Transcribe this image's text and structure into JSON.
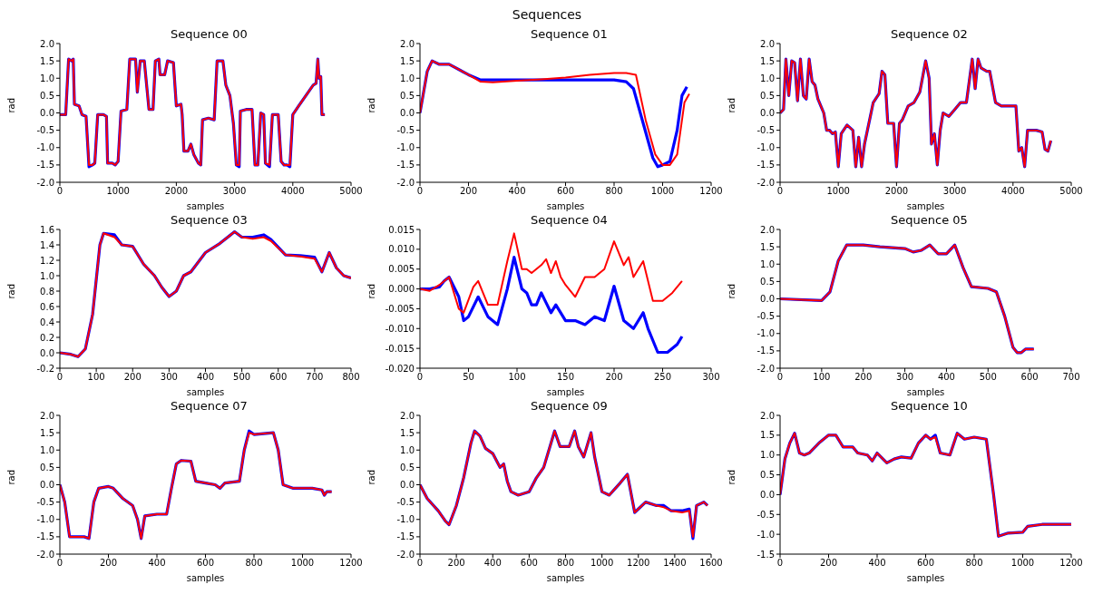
{
  "chart_data": [
    {
      "type": "line",
      "annotations": [
        "Sequences"
      ],
      "title": "Sequence 00",
      "xlabel": "samples",
      "ylabel": "rad",
      "xlim": [
        0,
        5000
      ],
      "xticks": [
        0,
        1000,
        2000,
        3000,
        4000,
        5000
      ],
      "ylim": [
        -2,
        2
      ],
      "yticks": [
        {
          "value": -2,
          "label": "-2.0"
        },
        -1.5,
        {
          "value": -1,
          "label": "-1.0"
        },
        -0.5,
        {
          "value": 0,
          "label": "0.0"
        },
        0.5,
        {
          "value": 1,
          "label": "1.0"
        },
        1.5,
        {
          "value": 2,
          "label": "2.0"
        }
      ],
      "grid": false,
      "marker": "none",
      "line_style": "solid",
      "x": [
        0,
        100,
        150,
        200,
        230,
        250,
        330,
        380,
        450,
        500,
        560,
        600,
        650,
        750,
        800,
        820,
        900,
        950,
        1000,
        1050,
        1150,
        1200,
        1300,
        1330,
        1380,
        1450,
        1530,
        1600,
        1640,
        1700,
        1720,
        1800,
        1850,
        1950,
        2000,
        2080,
        2100,
        2130,
        2200,
        2250,
        2300,
        2380,
        2420,
        2450,
        2550,
        2650,
        2700,
        2800,
        2850,
        2920,
        2980,
        3030,
        3080,
        3100,
        3200,
        3300,
        3350,
        3400,
        3450,
        3500,
        3530,
        3600,
        3650,
        3750,
        3800,
        3850,
        3900,
        3950,
        4000,
        4100,
        4350,
        4400,
        4430,
        4450,
        4480,
        4500,
        4550
      ],
      "series": [
        {
          "color": "#0000ff",
          "values": [
            -0.05,
            -0.05,
            1.55,
            1.5,
            1.55,
            0.25,
            0.2,
            -0.05,
            -0.1,
            -1.55,
            -1.5,
            -1.45,
            -0.05,
            -0.05,
            -0.1,
            -1.45,
            -1.45,
            -1.5,
            -1.4,
            0.05,
            0.1,
            1.55,
            1.55,
            0.6,
            1.5,
            1.5,
            0.1,
            0.1,
            1.5,
            1.55,
            1.1,
            1.1,
            1.5,
            1.45,
            0.2,
            0.25,
            -0.05,
            -1.1,
            -1.1,
            -0.9,
            -1.2,
            -1.45,
            -1.5,
            -0.2,
            -0.15,
            -0.2,
            1.5,
            1.5,
            0.8,
            0.5,
            -0.3,
            -1.5,
            -1.55,
            0.05,
            0.1,
            0.1,
            -1.5,
            -1.5,
            0,
            -0.05,
            -1.45,
            -1.55,
            -0.05,
            -0.05,
            -1.4,
            -1.5,
            -1.5,
            -1.55,
            -0.05,
            0.2,
            0.8,
            0.85,
            1.55,
            1.0,
            1.05,
            -0.05,
            -0.05
          ]
        },
        {
          "color": "#ff0000",
          "values": [
            -0.05,
            -0.05,
            1.55,
            1.5,
            1.55,
            0.25,
            0.2,
            -0.05,
            -0.1,
            -1.5,
            -1.5,
            -1.45,
            -0.05,
            -0.05,
            -0.1,
            -1.45,
            -1.45,
            -1.5,
            -1.4,
            0.05,
            0.1,
            1.55,
            1.55,
            0.6,
            1.5,
            1.5,
            0.1,
            0.1,
            1.5,
            1.55,
            1.1,
            1.1,
            1.5,
            1.45,
            0.2,
            0.25,
            -0.05,
            -1.1,
            -1.1,
            -0.9,
            -1.2,
            -1.45,
            -1.5,
            -0.2,
            -0.15,
            -0.2,
            1.5,
            1.5,
            0.8,
            0.5,
            -0.3,
            -1.5,
            -1.5,
            0.05,
            0.1,
            0.1,
            -1.5,
            -1.5,
            0,
            -0.05,
            -1.45,
            -1.5,
            -0.05,
            -0.05,
            -1.4,
            -1.5,
            -1.5,
            -1.5,
            -0.05,
            0.2,
            0.8,
            0.85,
            1.55,
            1.0,
            1.05,
            -0.05,
            -0.05
          ]
        }
      ]
    },
    {
      "type": "line",
      "title": "Sequence 01",
      "xlabel": "samples",
      "ylabel": "rad",
      "xlim": [
        0,
        1200
      ],
      "xticks": [
        0,
        200,
        400,
        600,
        800,
        1000,
        1200
      ],
      "ylim": [
        -2,
        2
      ],
      "yticks": [
        {
          "value": -2,
          "label": "-2.0"
        },
        -1.5,
        {
          "value": -1,
          "label": "-1.0"
        },
        -0.5,
        {
          "value": 0,
          "label": "0.0"
        },
        0.5,
        {
          "value": 1,
          "label": "1.0"
        },
        1.5,
        {
          "value": 2,
          "label": "2.0"
        }
      ],
      "grid": false,
      "marker": "none",
      "line_style": "solid",
      "series": [
        {
          "color": "#0000ff",
          "x": [
            0,
            30,
            50,
            80,
            120,
            200,
            250,
            300,
            400,
            500,
            600,
            700,
            800,
            850,
            880,
            920,
            960,
            980,
            1000,
            1030,
            1060,
            1080,
            1100
          ],
          "values": [
            0,
            1.2,
            1.5,
            1.4,
            1.4,
            1.1,
            0.95,
            0.95,
            0.95,
            0.95,
            0.95,
            0.95,
            0.95,
            0.9,
            0.7,
            -0.3,
            -1.3,
            -1.55,
            -1.5,
            -1.4,
            -0.5,
            0.5,
            0.75
          ]
        },
        {
          "color": "#ff0000",
          "x": [
            0,
            30,
            50,
            80,
            120,
            200,
            250,
            300,
            400,
            500,
            600,
            700,
            800,
            850,
            890,
            930,
            970,
            1000,
            1030,
            1060,
            1090,
            1110
          ],
          "values": [
            0,
            1.2,
            1.5,
            1.4,
            1.4,
            1.1,
            0.9,
            0.88,
            0.93,
            0.97,
            1.02,
            1.1,
            1.15,
            1.15,
            1.1,
            -0.2,
            -1.2,
            -1.5,
            -1.5,
            -1.2,
            0.3,
            0.55
          ]
        }
      ]
    },
    {
      "type": "line",
      "title": "Sequence 02",
      "xlabel": "samples",
      "ylabel": "rad",
      "xlim": [
        0,
        5000
      ],
      "xticks": [
        0,
        1000,
        2000,
        3000,
        4000,
        5000
      ],
      "ylim": [
        -2,
        2
      ],
      "yticks": [
        {
          "value": -2,
          "label": "-2.0"
        },
        -1.5,
        {
          "value": -1,
          "label": "-1.0"
        },
        -0.5,
        {
          "value": 0,
          "label": "0.0"
        },
        0.5,
        {
          "value": 1,
          "label": "1.0"
        },
        1.5,
        {
          "value": 2,
          "label": "2.0"
        }
      ],
      "grid": false,
      "marker": "none",
      "line_style": "solid",
      "x": [
        0,
        60,
        100,
        150,
        200,
        250,
        300,
        350,
        400,
        450,
        500,
        550,
        600,
        650,
        700,
        750,
        800,
        850,
        900,
        950,
        1000,
        1050,
        1150,
        1250,
        1300,
        1350,
        1400,
        1450,
        1500,
        1550,
        1600,
        1700,
        1750,
        1800,
        1850,
        1950,
        2000,
        2050,
        2100,
        2200,
        2300,
        2400,
        2500,
        2560,
        2600,
        2650,
        2700,
        2750,
        2800,
        2900,
        3000,
        3100,
        3200,
        3300,
        3350,
        3400,
        3450,
        3550,
        3600,
        3700,
        3800,
        3900,
        4000,
        4050,
        4100,
        4150,
        4200,
        4250,
        4400,
        4500,
        4550,
        4600,
        4650
      ],
      "series": [
        {
          "color": "#0000ff",
          "values": [
            0,
            0.1,
            1.55,
            0.5,
            1.5,
            1.45,
            0.35,
            1.55,
            0.5,
            0.4,
            1.55,
            0.9,
            0.8,
            0.4,
            0.2,
            0,
            -0.5,
            -0.5,
            -0.6,
            -0.55,
            -1.55,
            -0.6,
            -0.35,
            -0.5,
            -1.55,
            -0.7,
            -1.55,
            -0.9,
            -0.5,
            -0.1,
            0.3,
            0.55,
            1.2,
            1.1,
            -0.3,
            -0.3,
            -1.55,
            -0.3,
            -0.2,
            0.2,
            0.3,
            0.6,
            1.5,
            1.0,
            -0.9,
            -0.6,
            -1.5,
            -0.5,
            0,
            -0.1,
            0.1,
            0.3,
            0.3,
            1.55,
            0.7,
            1.55,
            1.3,
            1.2,
            1.2,
            0.3,
            0.2,
            0.2,
            0.2,
            0.2,
            -1.1,
            -1.0,
            -1.55,
            -0.5,
            -0.5,
            -0.55,
            -1.05,
            -1.1,
            -0.8
          ]
        },
        {
          "color": "#ff0000",
          "values": [
            0,
            0.1,
            1.55,
            0.5,
            1.5,
            1.45,
            0.35,
            1.55,
            0.5,
            0.4,
            1.55,
            0.9,
            0.8,
            0.4,
            0.2,
            0,
            -0.5,
            -0.5,
            -0.6,
            -0.55,
            -1.55,
            -0.6,
            -0.35,
            -0.5,
            -1.55,
            -0.7,
            -1.55,
            -0.9,
            -0.5,
            -0.1,
            0.3,
            0.55,
            1.2,
            1.1,
            -0.3,
            -0.3,
            -1.55,
            -0.3,
            -0.2,
            0.2,
            0.3,
            0.6,
            1.5,
            1.0,
            -0.9,
            -0.6,
            -1.5,
            -0.5,
            0,
            -0.1,
            0.1,
            0.3,
            0.3,
            1.55,
            0.7,
            1.55,
            1.3,
            1.2,
            1.2,
            0.3,
            0.2,
            0.2,
            0.2,
            0.2,
            -1.1,
            -1.0,
            -1.55,
            -0.5,
            -0.5,
            -0.55,
            -1.05,
            -1.1,
            -0.8
          ]
        }
      ]
    },
    {
      "type": "line",
      "title": "Sequence 03",
      "xlabel": "samples",
      "ylabel": "rad",
      "xlim": [
        0,
        800
      ],
      "xticks": [
        0,
        100,
        200,
        300,
        400,
        500,
        600,
        700,
        800
      ],
      "ylim": [
        -0.2,
        1.6
      ],
      "yticks": [
        -0.2,
        {
          "value": 0,
          "label": "0.0"
        },
        0.2,
        0.4,
        0.6,
        0.8,
        {
          "value": 1,
          "label": "1.0"
        },
        1.2,
        1.4,
        1.6
      ],
      "grid": false,
      "marker": "none",
      "line_style": "solid",
      "x": [
        0,
        30,
        50,
        70,
        90,
        110,
        120,
        150,
        170,
        200,
        230,
        260,
        280,
        300,
        320,
        340,
        360,
        400,
        440,
        480,
        500,
        530,
        560,
        580,
        620,
        660,
        700,
        720,
        740,
        760,
        780,
        800
      ],
      "series": [
        {
          "color": "#0000ff",
          "values": [
            0,
            -0.02,
            -0.05,
            0.05,
            0.5,
            1.4,
            1.55,
            1.53,
            1.4,
            1.38,
            1.15,
            1.0,
            0.85,
            0.73,
            0.8,
            1.0,
            1.05,
            1.3,
            1.42,
            1.57,
            1.5,
            1.5,
            1.53,
            1.47,
            1.27,
            1.26,
            1.24,
            1.05,
            1.3,
            1.1,
            1.0,
            0.97
          ]
        },
        {
          "color": "#ff0000",
          "values": [
            0,
            -0.02,
            -0.05,
            0.05,
            0.5,
            1.4,
            1.55,
            1.5,
            1.4,
            1.38,
            1.15,
            1.0,
            0.85,
            0.73,
            0.8,
            1.0,
            1.05,
            1.3,
            1.42,
            1.57,
            1.5,
            1.48,
            1.5,
            1.45,
            1.27,
            1.25,
            1.22,
            1.05,
            1.3,
            1.1,
            1.0,
            0.97
          ]
        }
      ]
    },
    {
      "type": "line",
      "title": "Sequence 04",
      "xlabel": "samples",
      "ylabel": "rad",
      "xlim": [
        0,
        300
      ],
      "xticks": [
        0,
        50,
        100,
        150,
        200,
        250,
        300
      ],
      "ylim": [
        -0.02,
        0.015
      ],
      "yticks": [
        {
          "value": -0.02,
          "label": "-0.020"
        },
        -0.015,
        {
          "value": -0.01,
          "label": "-0.010"
        },
        -0.005,
        {
          "value": 0,
          "label": "0.000"
        },
        0.005,
        {
          "value": 0.01,
          "label": "0.010"
        },
        0.015
      ],
      "grid": false,
      "marker": "none",
      "line_style": "solid",
      "series": [
        {
          "color": "#0000ff",
          "x": [
            0,
            10,
            20,
            25,
            30,
            40,
            45,
            50,
            60,
            70,
            80,
            90,
            97,
            105,
            110,
            115,
            120,
            125,
            130,
            135,
            140,
            150,
            160,
            170,
            180,
            190,
            200,
            210,
            220,
            230,
            235,
            245,
            255,
            265,
            270
          ],
          "values": [
            0,
            0,
            0.0005,
            0.002,
            0.003,
            -0.002,
            -0.008,
            -0.007,
            -0.002,
            -0.007,
            -0.009,
            0,
            0.008,
            0,
            -0.001,
            -0.004,
            -0.004,
            -0.001,
            -0.0035,
            -0.006,
            -0.004,
            -0.008,
            -0.008,
            -0.009,
            -0.007,
            -0.008,
            0.0007,
            -0.008,
            -0.01,
            -0.006,
            -0.01,
            -0.016,
            -0.016,
            -0.014,
            -0.012
          ]
        },
        {
          "color": "#ff0000",
          "x": [
            0,
            10,
            20,
            30,
            40,
            45,
            55,
            60,
            70,
            80,
            90,
            97,
            105,
            110,
            115,
            125,
            130,
            135,
            140,
            145,
            150,
            160,
            170,
            180,
            190,
            200,
            210,
            215,
            220,
            230,
            240,
            250,
            260,
            270
          ],
          "values": [
            0,
            -0.0005,
            0.001,
            0.003,
            -0.005,
            -0.006,
            0.0005,
            0.002,
            -0.004,
            -0.004,
            0.007,
            0.014,
            0.005,
            0.005,
            0.004,
            0.006,
            0.0075,
            0.004,
            0.007,
            0.003,
            0.001,
            -0.002,
            0.003,
            0.003,
            0.005,
            0.012,
            0.006,
            0.008,
            0.003,
            0.007,
            -0.003,
            -0.003,
            -0.001,
            0.002
          ]
        }
      ]
    },
    {
      "type": "line",
      "title": "Sequence 05",
      "xlabel": "samples",
      "ylabel": "rad",
      "xlim": [
        0,
        700
      ],
      "xticks": [
        0,
        100,
        200,
        300,
        400,
        500,
        600,
        700
      ],
      "ylim": [
        -2,
        2
      ],
      "yticks": [
        {
          "value": -2,
          "label": "-2.0"
        },
        -1.5,
        {
          "value": -1,
          "label": "-1.0"
        },
        -0.5,
        {
          "value": 0,
          "label": "0.0"
        },
        0.5,
        {
          "value": 1,
          "label": "1.0"
        },
        1.5,
        {
          "value": 2,
          "label": "2.0"
        }
      ],
      "grid": false,
      "marker": "none",
      "line_style": "solid",
      "x": [
        0,
        100,
        120,
        140,
        160,
        200,
        240,
        300,
        320,
        340,
        360,
        380,
        400,
        420,
        440,
        460,
        500,
        520,
        540,
        560,
        570,
        580,
        590,
        610
      ],
      "series": [
        {
          "color": "#0000ff",
          "values": [
            0,
            -0.05,
            0.2,
            1.1,
            1.55,
            1.55,
            1.5,
            1.45,
            1.35,
            1.4,
            1.55,
            1.3,
            1.3,
            1.55,
            0.9,
            0.35,
            0.3,
            0.2,
            -0.5,
            -1.4,
            -1.55,
            -1.55,
            -1.45,
            -1.45
          ]
        },
        {
          "color": "#ff0000",
          "values": [
            0,
            -0.05,
            0.2,
            1.1,
            1.55,
            1.55,
            1.5,
            1.45,
            1.35,
            1.4,
            1.55,
            1.3,
            1.3,
            1.55,
            0.9,
            0.35,
            0.3,
            0.2,
            -0.5,
            -1.4,
            -1.55,
            -1.55,
            -1.45,
            -1.45
          ]
        }
      ]
    },
    {
      "type": "line",
      "title": "Sequence 07",
      "xlabel": "samples",
      "ylabel": "rad",
      "xlim": [
        0,
        1200
      ],
      "xticks": [
        0,
        200,
        400,
        600,
        800,
        1000,
        1200
      ],
      "ylim": [
        -2,
        2
      ],
      "yticks": [
        {
          "value": -2,
          "label": "-2.0"
        },
        -1.5,
        {
          "value": -1,
          "label": "-1.0"
        },
        -0.5,
        {
          "value": 0,
          "label": "0.0"
        },
        0.5,
        {
          "value": 1,
          "label": "1.0"
        },
        1.5,
        {
          "value": 2,
          "label": "2.0"
        }
      ],
      "grid": false,
      "marker": "none",
      "line_style": "solid",
      "x": [
        0,
        20,
        40,
        60,
        100,
        120,
        140,
        160,
        200,
        220,
        260,
        300,
        320,
        335,
        350,
        400,
        440,
        460,
        480,
        500,
        540,
        560,
        600,
        640,
        660,
        680,
        740,
        760,
        780,
        800,
        880,
        900,
        920,
        960,
        1000,
        1040,
        1080,
        1090,
        1100,
        1120
      ],
      "series": [
        {
          "color": "#0000ff",
          "values": [
            0,
            -0.5,
            -1.5,
            -1.5,
            -1.5,
            -1.55,
            -0.5,
            -0.1,
            -0.05,
            -0.1,
            -0.4,
            -0.6,
            -1.0,
            -1.55,
            -0.9,
            -0.85,
            -0.85,
            -0.1,
            0.6,
            0.7,
            0.68,
            0.1,
            0.05,
            0,
            -0.1,
            0.05,
            0.1,
            1.0,
            1.55,
            1.45,
            1.5,
            1.0,
            0,
            -0.1,
            -0.1,
            -0.1,
            -0.15,
            -0.3,
            -0.2,
            -0.2
          ]
        },
        {
          "color": "#ff0000",
          "values": [
            0,
            -0.5,
            -1.5,
            -1.5,
            -1.5,
            -1.55,
            -0.5,
            -0.1,
            -0.05,
            -0.1,
            -0.4,
            -0.6,
            -1.0,
            -1.55,
            -0.9,
            -0.85,
            -0.85,
            -0.1,
            0.6,
            0.7,
            0.68,
            0.1,
            0.05,
            0,
            -0.1,
            0.05,
            0.1,
            1.0,
            1.5,
            1.45,
            1.5,
            1.0,
            0,
            -0.1,
            -0.1,
            -0.1,
            -0.15,
            -0.3,
            -0.2,
            -0.2
          ]
        }
      ]
    },
    {
      "type": "line",
      "title": "Sequence 09",
      "xlabel": "samples",
      "ylabel": "rad",
      "xlim": [
        0,
        1600
      ],
      "xticks": [
        0,
        200,
        400,
        600,
        800,
        1000,
        1200,
        1400,
        1600
      ],
      "ylim": [
        -2,
        2
      ],
      "yticks": [
        {
          "value": -2,
          "label": "-2.0"
        },
        -1.5,
        {
          "value": -1,
          "label": "-1.0"
        },
        -0.5,
        {
          "value": 0,
          "label": "0.0"
        },
        0.5,
        {
          "value": 1,
          "label": "1.0"
        },
        1.5,
        {
          "value": 2,
          "label": "2.0"
        }
      ],
      "grid": false,
      "marker": "none",
      "line_style": "solid",
      "x": [
        0,
        40,
        100,
        140,
        160,
        200,
        240,
        280,
        300,
        330,
        360,
        400,
        440,
        460,
        480,
        500,
        540,
        600,
        640,
        680,
        740,
        770,
        820,
        850,
        870,
        900,
        940,
        960,
        1000,
        1040,
        1100,
        1140,
        1180,
        1200,
        1240,
        1300,
        1340,
        1380,
        1440,
        1480,
        1500,
        1520,
        1560,
        1580
      ],
      "series": [
        {
          "color": "#0000ff",
          "values": [
            0,
            -0.4,
            -0.75,
            -1.05,
            -1.15,
            -0.6,
            0.2,
            1.2,
            1.55,
            1.4,
            1.05,
            0.9,
            0.5,
            0.6,
            0.1,
            -0.2,
            -0.3,
            -0.2,
            0.2,
            0.5,
            1.55,
            1.1,
            1.1,
            1.55,
            1.1,
            0.8,
            1.5,
            0.8,
            -0.2,
            -0.3,
            0.05,
            0.3,
            -0.8,
            -0.7,
            -0.5,
            -0.6,
            -0.6,
            -0.75,
            -0.75,
            -0.7,
            -1.55,
            -0.6,
            -0.5,
            -0.6
          ]
        },
        {
          "color": "#ff0000",
          "values": [
            0,
            -0.4,
            -0.75,
            -1.05,
            -1.15,
            -0.6,
            0.2,
            1.2,
            1.55,
            1.4,
            1.05,
            0.9,
            0.5,
            0.6,
            0.1,
            -0.2,
            -0.3,
            -0.2,
            0.2,
            0.5,
            1.55,
            1.1,
            1.1,
            1.55,
            1.1,
            0.8,
            1.5,
            0.8,
            -0.2,
            -0.3,
            0.05,
            0.3,
            -0.8,
            -0.7,
            -0.5,
            -0.6,
            -0.65,
            -0.75,
            -0.8,
            -0.75,
            -1.5,
            -0.6,
            -0.5,
            -0.6
          ]
        }
      ]
    },
    {
      "type": "line",
      "title": "Sequence 10",
      "xlabel": "samples",
      "ylabel": "rad",
      "xlim": [
        0,
        1200
      ],
      "xticks": [
        0,
        200,
        400,
        600,
        800,
        1000,
        1200
      ],
      "ylim": [
        -1.5,
        2
      ],
      "yticks": [
        -1.5,
        {
          "value": -1,
          "label": "-1.0"
        },
        -0.5,
        {
          "value": 0,
          "label": "0.0"
        },
        0.5,
        {
          "value": 1,
          "label": "1.0"
        },
        1.5,
        {
          "value": 2,
          "label": "2.0"
        }
      ],
      "grid": false,
      "marker": "none",
      "line_style": "solid",
      "x": [
        0,
        20,
        40,
        60,
        80,
        100,
        120,
        160,
        200,
        230,
        260,
        300,
        320,
        360,
        380,
        400,
        440,
        470,
        500,
        540,
        570,
        600,
        620,
        640,
        660,
        700,
        730,
        760,
        800,
        850,
        880,
        900,
        940,
        1000,
        1020,
        1080,
        1200
      ],
      "series": [
        {
          "color": "#0000ff",
          "values": [
            0,
            0.9,
            1.3,
            1.55,
            1.05,
            1.0,
            1.05,
            1.3,
            1.5,
            1.5,
            1.2,
            1.2,
            1.05,
            1.0,
            0.85,
            1.05,
            0.8,
            0.9,
            0.95,
            0.92,
            1.3,
            1.5,
            1.4,
            1.5,
            1.05,
            1.0,
            1.55,
            1.4,
            1.45,
            1.4,
            0,
            -1.05,
            -0.97,
            -0.95,
            -0.8,
            -0.75,
            -0.75
          ]
        },
        {
          "color": "#ff0000",
          "values": [
            0,
            0.9,
            1.3,
            1.55,
            1.05,
            1.0,
            1.05,
            1.3,
            1.5,
            1.5,
            1.2,
            1.2,
            1.05,
            1.0,
            0.85,
            1.05,
            0.8,
            0.9,
            0.95,
            0.92,
            1.3,
            1.5,
            1.4,
            1.45,
            1.05,
            1.0,
            1.55,
            1.4,
            1.45,
            1.4,
            0,
            -1.05,
            -0.97,
            -0.95,
            -0.8,
            -0.75,
            -0.75
          ]
        }
      ]
    }
  ]
}
